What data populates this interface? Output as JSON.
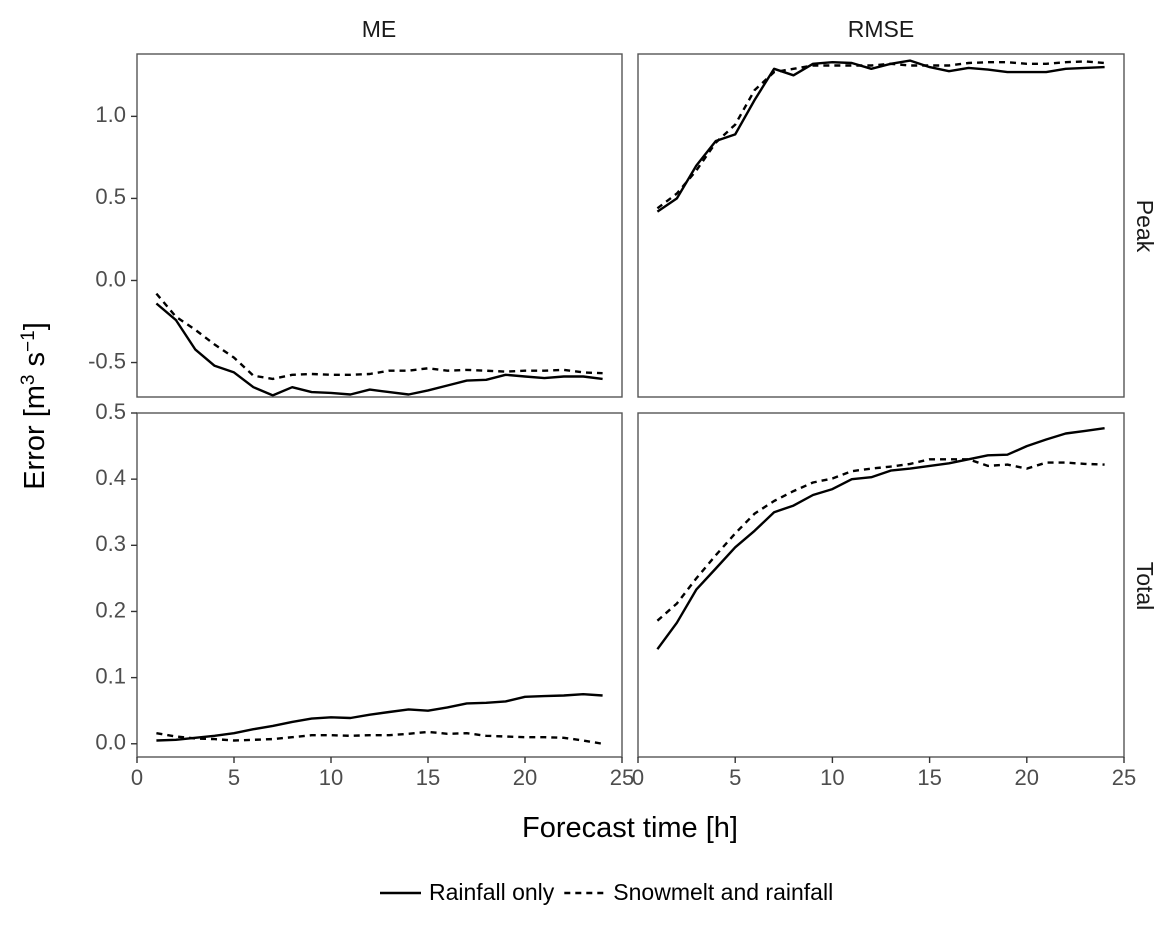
{
  "chart_data": {
    "type": "line",
    "facet_columns": [
      "ME",
      "RMSE"
    ],
    "facet_rows": [
      "Peak",
      "Total"
    ],
    "xlabel": "Forecast time [h]",
    "ylabel": {
      "base": "Error [m",
      "sup1": "3",
      "mid": " s",
      "sup2": "−1",
      "end": "]"
    },
    "xlim": [
      0,
      25
    ],
    "xticks": [
      0,
      5,
      10,
      15,
      20,
      25
    ],
    "rows": {
      "Peak": {
        "ylim": [
          -0.71,
          1.38
        ],
        "yticks": [
          -0.5,
          0.0,
          0.5,
          1.0
        ],
        "ytick_labels": [
          "-0.5",
          "0.0",
          "0.5",
          "1.0"
        ]
      },
      "Total": {
        "ylim": [
          -0.02,
          0.5
        ],
        "yticks": [
          0.0,
          0.1,
          0.2,
          0.3,
          0.4,
          0.5
        ],
        "ytick_labels": [
          "0.0",
          "0.1",
          "0.2",
          "0.3",
          "0.4",
          "0.5"
        ]
      }
    },
    "x": [
      1,
      2,
      3,
      4,
      5,
      6,
      7,
      8,
      9,
      10,
      11,
      12,
      13,
      14,
      15,
      16,
      17,
      18,
      19,
      20,
      21,
      22,
      23,
      24
    ],
    "series_styles": {
      "Rainfall only": {
        "dash": "none",
        "color": "#000000"
      },
      "Snowmelt and rainfall": {
        "dash": "6,5",
        "color": "#000000"
      }
    },
    "panels": [
      {
        "column": "ME",
        "row": "Peak",
        "series": [
          {
            "name": "Rainfall only",
            "values": [
              -0.14,
              -0.24,
              -0.42,
              -0.52,
              -0.56,
              -0.65,
              -0.7,
              -0.65,
              -0.68,
              -0.685,
              -0.695,
              -0.665,
              -0.68,
              -0.695,
              -0.67,
              -0.64,
              -0.61,
              -0.605,
              -0.575,
              -0.585,
              -0.595,
              -0.585,
              -0.585,
              -0.6
            ]
          },
          {
            "name": "Snowmelt and rainfall",
            "values": [
              -0.08,
              -0.22,
              -0.3,
              -0.39,
              -0.47,
              -0.58,
              -0.6,
              -0.575,
              -0.57,
              -0.575,
              -0.575,
              -0.57,
              -0.55,
              -0.55,
              -0.535,
              -0.55,
              -0.545,
              -0.55,
              -0.555,
              -0.55,
              -0.55,
              -0.545,
              -0.56,
              -0.565
            ]
          }
        ]
      },
      {
        "column": "RMSE",
        "row": "Peak",
        "series": [
          {
            "name": "Rainfall only",
            "values": [
              0.42,
              0.5,
              0.7,
              0.85,
              0.89,
              1.1,
              1.29,
              1.25,
              1.32,
              1.33,
              1.325,
              1.29,
              1.32,
              1.34,
              1.3,
              1.275,
              1.295,
              1.285,
              1.27,
              1.27,
              1.27,
              1.29,
              1.295,
              1.3
            ]
          },
          {
            "name": "Snowmelt and rainfall",
            "values": [
              0.44,
              0.53,
              0.67,
              0.84,
              0.95,
              1.16,
              1.27,
              1.29,
              1.31,
              1.31,
              1.31,
              1.31,
              1.32,
              1.31,
              1.31,
              1.31,
              1.325,
              1.33,
              1.33,
              1.32,
              1.32,
              1.33,
              1.335,
              1.325
            ]
          }
        ]
      },
      {
        "column": "ME",
        "row": "Total",
        "series": [
          {
            "name": "Rainfall only",
            "values": [
              0.005,
              0.006,
              0.009,
              0.012,
              0.016,
              0.022,
              0.027,
              0.033,
              0.038,
              0.04,
              0.039,
              0.044,
              0.048,
              0.052,
              0.05,
              0.055,
              0.061,
              0.062,
              0.064,
              0.071,
              0.072,
              0.073,
              0.075,
              0.073
            ]
          },
          {
            "name": "Snowmelt and rainfall",
            "values": [
              0.016,
              0.011,
              0.008,
              0.007,
              0.005,
              0.006,
              0.007,
              0.01,
              0.013,
              0.013,
              0.012,
              0.013,
              0.013,
              0.015,
              0.018,
              0.015,
              0.016,
              0.012,
              0.011,
              0.01,
              0.01,
              0.009,
              0.005,
              0.0
            ]
          }
        ]
      },
      {
        "column": "RMSE",
        "row": "Total",
        "series": [
          {
            "name": "Rainfall only",
            "values": [
              0.143,
              0.183,
              0.233,
              0.265,
              0.297,
              0.322,
              0.35,
              0.36,
              0.376,
              0.385,
              0.4,
              0.403,
              0.413,
              0.416,
              0.42,
              0.424,
              0.43,
              0.436,
              0.437,
              0.45,
              0.46,
              0.469,
              0.473,
              0.477
            ]
          },
          {
            "name": "Snowmelt and rainfall",
            "values": [
              0.186,
              0.212,
              0.25,
              0.285,
              0.318,
              0.348,
              0.367,
              0.382,
              0.395,
              0.401,
              0.412,
              0.416,
              0.419,
              0.423,
              0.43,
              0.43,
              0.43,
              0.42,
              0.422,
              0.416,
              0.425,
              0.425,
              0.423,
              0.422
            ]
          }
        ]
      }
    ],
    "legend": {
      "position": "bottom",
      "items": [
        {
          "label": "Rainfall only",
          "series": "Rainfall only"
        },
        {
          "label": "Snowmelt and rainfall",
          "series": "Snowmelt and rainfall"
        }
      ]
    },
    "grid": false
  }
}
